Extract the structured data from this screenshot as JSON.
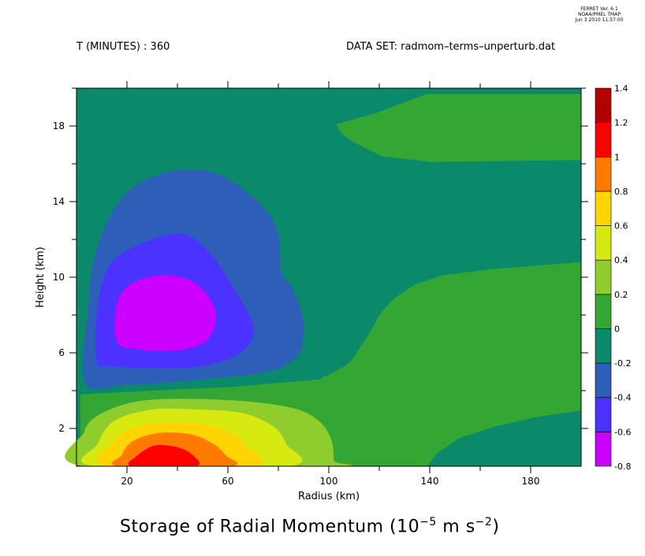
{
  "header": {
    "software_line1": "FERRET Ver. 6.1",
    "software_line2": "NOAA/PMEL TMAP",
    "software_line3": "Jun  3 2010 11:57:00",
    "time_label": "T (MINUTES) : 360",
    "dataset_label": "DATA SET: radmom–terms–unperturb.dat"
  },
  "title": {
    "main": "Storage of Radial Momentum (10",
    "exp1": "−5",
    "mid": " m s",
    "exp2": "−2",
    "close": ")"
  },
  "chart_data": {
    "type": "heatmap",
    "xlabel": "Radius (km)",
    "ylabel": "Height (km)",
    "xlim": [
      0,
      200
    ],
    "ylim": [
      0,
      20
    ],
    "x_ticks": [
      20,
      60,
      100,
      140,
      180
    ],
    "y_ticks": [
      2,
      6,
      10,
      14,
      18
    ],
    "colorbar": {
      "levels": [
        -0.8,
        -0.6,
        -0.4,
        -0.2,
        0,
        0.2,
        0.4,
        0.6,
        0.8,
        1,
        1.2,
        1.4
      ],
      "labels": [
        "-0.8",
        "-0.6",
        "-0.4",
        "-0.2",
        "0",
        "0.2",
        "0.4",
        "0.6",
        "0.8",
        "1",
        "1.2",
        "1.4"
      ],
      "colors": [
        "#cc00ff",
        "#4b33ff",
        "#2e5fb8",
        "#0b8a6b",
        "#33a633",
        "#8fcc2e",
        "#d6ea12",
        "#ffd400",
        "#ff7a00",
        "#ff0000",
        "#b30000"
      ]
    },
    "regions": [
      {
        "name": "background",
        "range": [
          -0.2,
          0
        ],
        "color": "#0b8a6b"
      },
      {
        "name": "upper-right positive",
        "range": [
          0,
          0.2
        ],
        "color": "#33a633"
      },
      {
        "name": "mid-right positive",
        "range": [
          0,
          0.2
        ],
        "color": "#33a633"
      },
      {
        "name": "lower positive",
        "range": [
          0,
          0.2
        ],
        "color": "#33a633"
      },
      {
        "name": "lower-right negative",
        "range": [
          -0.2,
          0
        ],
        "color": "#0b8a6b"
      },
      {
        "name": "low-level 0.2",
        "range": [
          0.2,
          0.4
        ],
        "color": "#8fcc2e"
      },
      {
        "name": "low-level 0.4",
        "range": [
          0.4,
          0.6
        ],
        "color": "#d6ea12"
      },
      {
        "name": "low-level 0.6",
        "range": [
          0.6,
          0.8
        ],
        "color": "#ffd400"
      },
      {
        "name": "low-level 0.8",
        "range": [
          0.8,
          1.0
        ],
        "color": "#ff7a00"
      },
      {
        "name": "low-level max",
        "range": [
          1.0,
          1.2
        ],
        "color": "#ff0000"
      },
      {
        "name": "mid-level -0.2",
        "range": [
          -0.4,
          -0.2
        ],
        "color": "#2e5fb8"
      },
      {
        "name": "mid-level -0.4",
        "range": [
          -0.6,
          -0.4
        ],
        "color": "#4b33ff"
      },
      {
        "name": "mid-level min",
        "range": [
          -0.8,
          -0.6
        ],
        "color": "#cc00ff"
      }
    ],
    "features": [
      {
        "label": "negative core",
        "center": [
          34,
          8.2
        ],
        "min_range": [
          -0.8,
          -0.6
        ]
      },
      {
        "label": "positive core",
        "center": [
          35,
          0.5
        ],
        "max_range": [
          1.0,
          1.2
        ]
      }
    ]
  }
}
